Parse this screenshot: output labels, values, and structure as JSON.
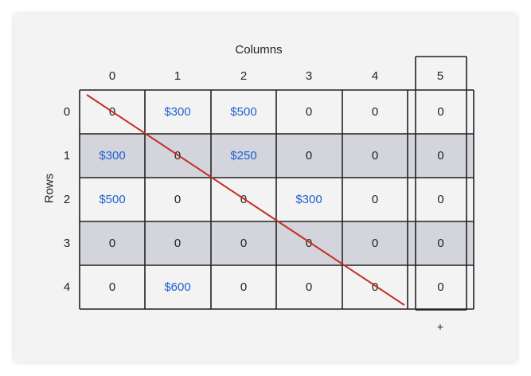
{
  "labels": {
    "columns_title": "Columns",
    "rows_title": "Rows",
    "add_symbol": "+"
  },
  "col_headers": [
    "0",
    "1",
    "2",
    "3",
    "4",
    "5"
  ],
  "row_headers": [
    "0",
    "1",
    "2",
    "3",
    "4"
  ],
  "grid": [
    [
      "0",
      "$300",
      "$500",
      "0",
      "0",
      "0"
    ],
    [
      "$300",
      "0",
      "$250",
      "0",
      "0",
      "0"
    ],
    [
      "$500",
      "0",
      "0",
      "$300",
      "0",
      "0"
    ],
    [
      "0",
      "0",
      "0",
      "0",
      "0",
      "0"
    ],
    [
      "0",
      "$600",
      "0",
      "0",
      "0",
      "0"
    ]
  ],
  "shaded_rows": [
    1,
    3
  ],
  "colors": {
    "money": "#1f5fd1",
    "shade": "#d3d4dc",
    "diagonal": "#c0301e",
    "grid_line": "#222222"
  }
}
